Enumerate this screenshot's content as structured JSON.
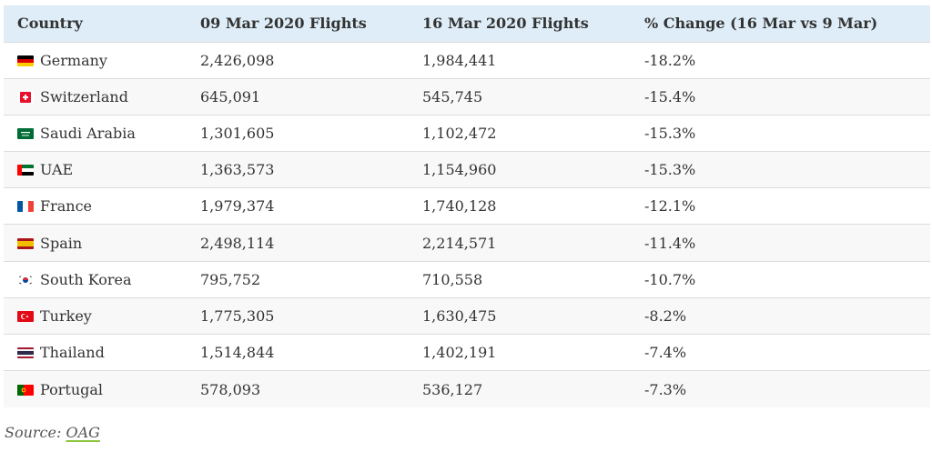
{
  "table": {
    "headers": [
      "Country",
      "09 Mar 2020 Flights",
      "16 Mar 2020 Flights",
      "% Change (16 Mar vs 9 Mar)"
    ],
    "rows": [
      {
        "country": "Germany",
        "flag": "germany-flag-icon",
        "mar9": "2,426,098",
        "mar16": "1,984,441",
        "change": "-18.2%"
      },
      {
        "country": "Switzerland",
        "flag": "switzerland-flag-icon",
        "mar9": "645,091",
        "mar16": "545,745",
        "change": "-15.4%"
      },
      {
        "country": "Saudi Arabia",
        "flag": "saudi-arabia-flag-icon",
        "mar9": "1,301,605",
        "mar16": "1,102,472",
        "change": "-15.3%"
      },
      {
        "country": "UAE",
        "flag": "uae-flag-icon",
        "mar9": "1,363,573",
        "mar16": "1,154,960",
        "change": "-15.3%"
      },
      {
        "country": "France",
        "flag": "france-flag-icon",
        "mar9": "1,979,374",
        "mar16": "1,740,128",
        "change": "-12.1%"
      },
      {
        "country": "Spain",
        "flag": "spain-flag-icon",
        "mar9": "2,498,114",
        "mar16": "2,214,571",
        "change": "-11.4%"
      },
      {
        "country": "South Korea",
        "flag": "south-korea-flag-icon",
        "mar9": "795,752",
        "mar16": "710,558",
        "change": "-10.7%"
      },
      {
        "country": "Turkey",
        "flag": "turkey-flag-icon",
        "mar9": "1,775,305",
        "mar16": "1,630,475",
        "change": "-8.2%"
      },
      {
        "country": "Thailand",
        "flag": "thailand-flag-icon",
        "mar9": "1,514,844",
        "mar16": "1,402,191",
        "change": "-7.4%"
      },
      {
        "country": "Portugal",
        "flag": "portugal-flag-icon",
        "mar9": "578,093",
        "mar16": "536,127",
        "change": "-7.3%"
      }
    ]
  },
  "source": {
    "prefix": "Source: ",
    "link_text": "OAG"
  }
}
